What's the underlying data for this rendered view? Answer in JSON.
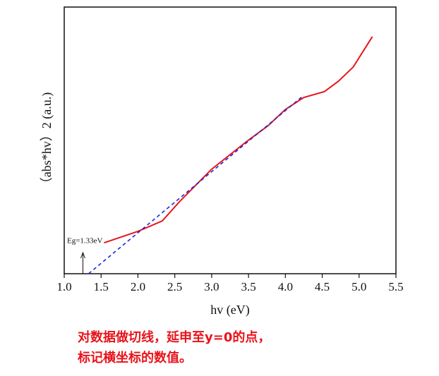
{
  "chart_data": {
    "type": "line",
    "xlabel": "hv (eV)",
    "ylabel": "（abs*hv）2 (a.u.)",
    "xlim": [
      1.0,
      5.5
    ],
    "ylim": [
      0,
      1
    ],
    "xticks": [
      {
        "value": 1.0,
        "label": "1.0"
      },
      {
        "value": 1.5,
        "label": "1.5"
      },
      {
        "value": 2.0,
        "label": "2.0"
      },
      {
        "value": 2.5,
        "label": "2.5"
      },
      {
        "value": 3.0,
        "label": "3.0"
      },
      {
        "value": 3.5,
        "label": "3.5"
      },
      {
        "value": 4.0,
        "label": "4.0"
      },
      {
        "value": 4.5,
        "label": "4.5"
      },
      {
        "value": 5.0,
        "label": "5.0"
      },
      {
        "value": 5.5,
        "label": "5.5"
      }
    ],
    "series": [
      {
        "color": "#e8141b",
        "dashed": false,
        "x": [
          1.54,
          2.0,
          2.33,
          2.57,
          3.0,
          3.48,
          3.77,
          4.0,
          4.25,
          4.53,
          4.72,
          4.92,
          5.18
        ],
        "values": [
          0.116,
          0.159,
          0.198,
          0.272,
          0.392,
          0.497,
          0.556,
          0.616,
          0.661,
          0.683,
          0.722,
          0.775,
          0.889
        ]
      },
      {
        "color": "#1a2ad8",
        "dashed": true,
        "x": [
          1.33,
          4.25
        ],
        "values": [
          0,
          0.669
        ]
      }
    ],
    "annotation": {
      "text": "Eg=1.33eV",
      "x": 1.33
    },
    "note": [
      "对数据做切线，延申至y=0的点，",
      "标记横坐标的数值。"
    ]
  }
}
